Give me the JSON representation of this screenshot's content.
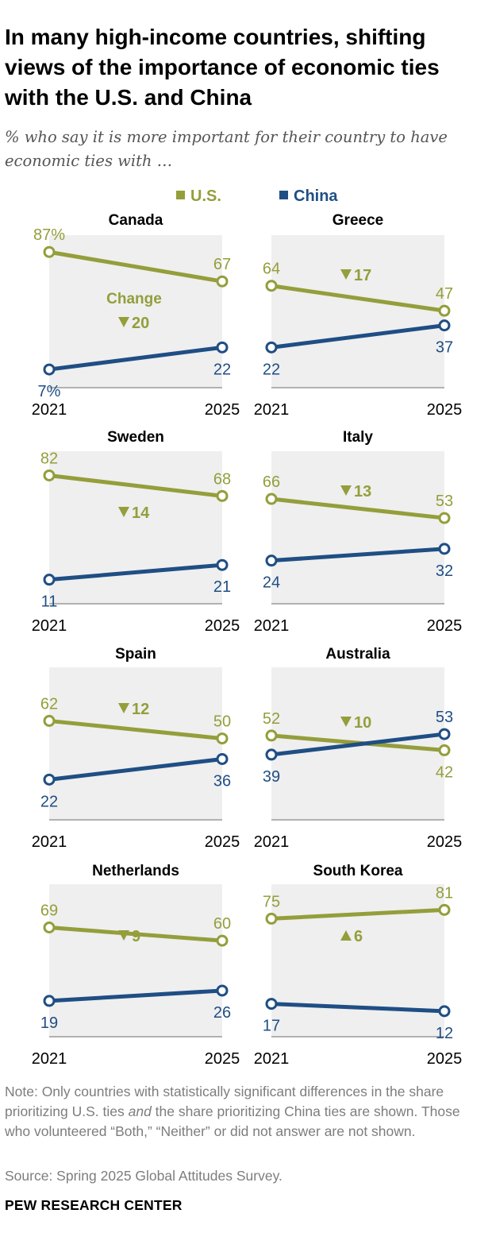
{
  "title": "In many high-income countries, shifting views of the importance of economic ties with the U.S. and China",
  "subtitle": "% who say it is more important for their country to have economic ties with …",
  "colors": {
    "us": "#949e3b",
    "china": "#1f4e84",
    "panel_bg": "#efefef",
    "axis": "#9a9a9a"
  },
  "legend": [
    {
      "label": "U.S.",
      "color": "#949e3b"
    },
    {
      "label": "China",
      "color": "#1f4e84"
    }
  ],
  "chart_data": {
    "type": "line",
    "x": [
      "2021",
      "2025"
    ],
    "ylim": [
      0,
      100
    ],
    "series_names": [
      "U.S.",
      "China"
    ],
    "change_label": "Change",
    "panels": [
      {
        "country": "Canada",
        "us": [
          87,
          67
        ],
        "china": [
          7,
          22
        ],
        "change": "20",
        "direction": "down",
        "us_label_2021": "87%",
        "china_label_2021": "7%"
      },
      {
        "country": "Greece",
        "us": [
          64,
          47
        ],
        "china": [
          22,
          37
        ],
        "change": "17",
        "direction": "down"
      },
      {
        "country": "Sweden",
        "us": [
          82,
          68
        ],
        "china": [
          11,
          21
        ],
        "change": "14",
        "direction": "down"
      },
      {
        "country": "Italy",
        "us": [
          66,
          53
        ],
        "china": [
          24,
          32
        ],
        "change": "13",
        "direction": "down"
      },
      {
        "country": "Spain",
        "us": [
          62,
          50
        ],
        "china": [
          22,
          36
        ],
        "change": "12",
        "direction": "down"
      },
      {
        "country": "Australia",
        "us": [
          52,
          42
        ],
        "china": [
          39,
          53
        ],
        "change": "10",
        "direction": "down"
      },
      {
        "country": "Netherlands",
        "us": [
          69,
          60
        ],
        "china": [
          19,
          26
        ],
        "change": "9",
        "direction": "down"
      },
      {
        "country": "South Korea",
        "us": [
          75,
          81
        ],
        "china": [
          17,
          12
        ],
        "change": "6",
        "direction": "up"
      }
    ]
  },
  "note_parts": [
    "Note: Only countries with statistically significant differences in the share prioritizing U.S. ties ",
    "and",
    " the share prioritizing China ties are shown. Those who volunteered “Both,” “Neither” or did not answer are not shown."
  ],
  "source": "Source: Spring 2025 Global Attitudes Survey.",
  "footer": "PEW RESEARCH CENTER"
}
